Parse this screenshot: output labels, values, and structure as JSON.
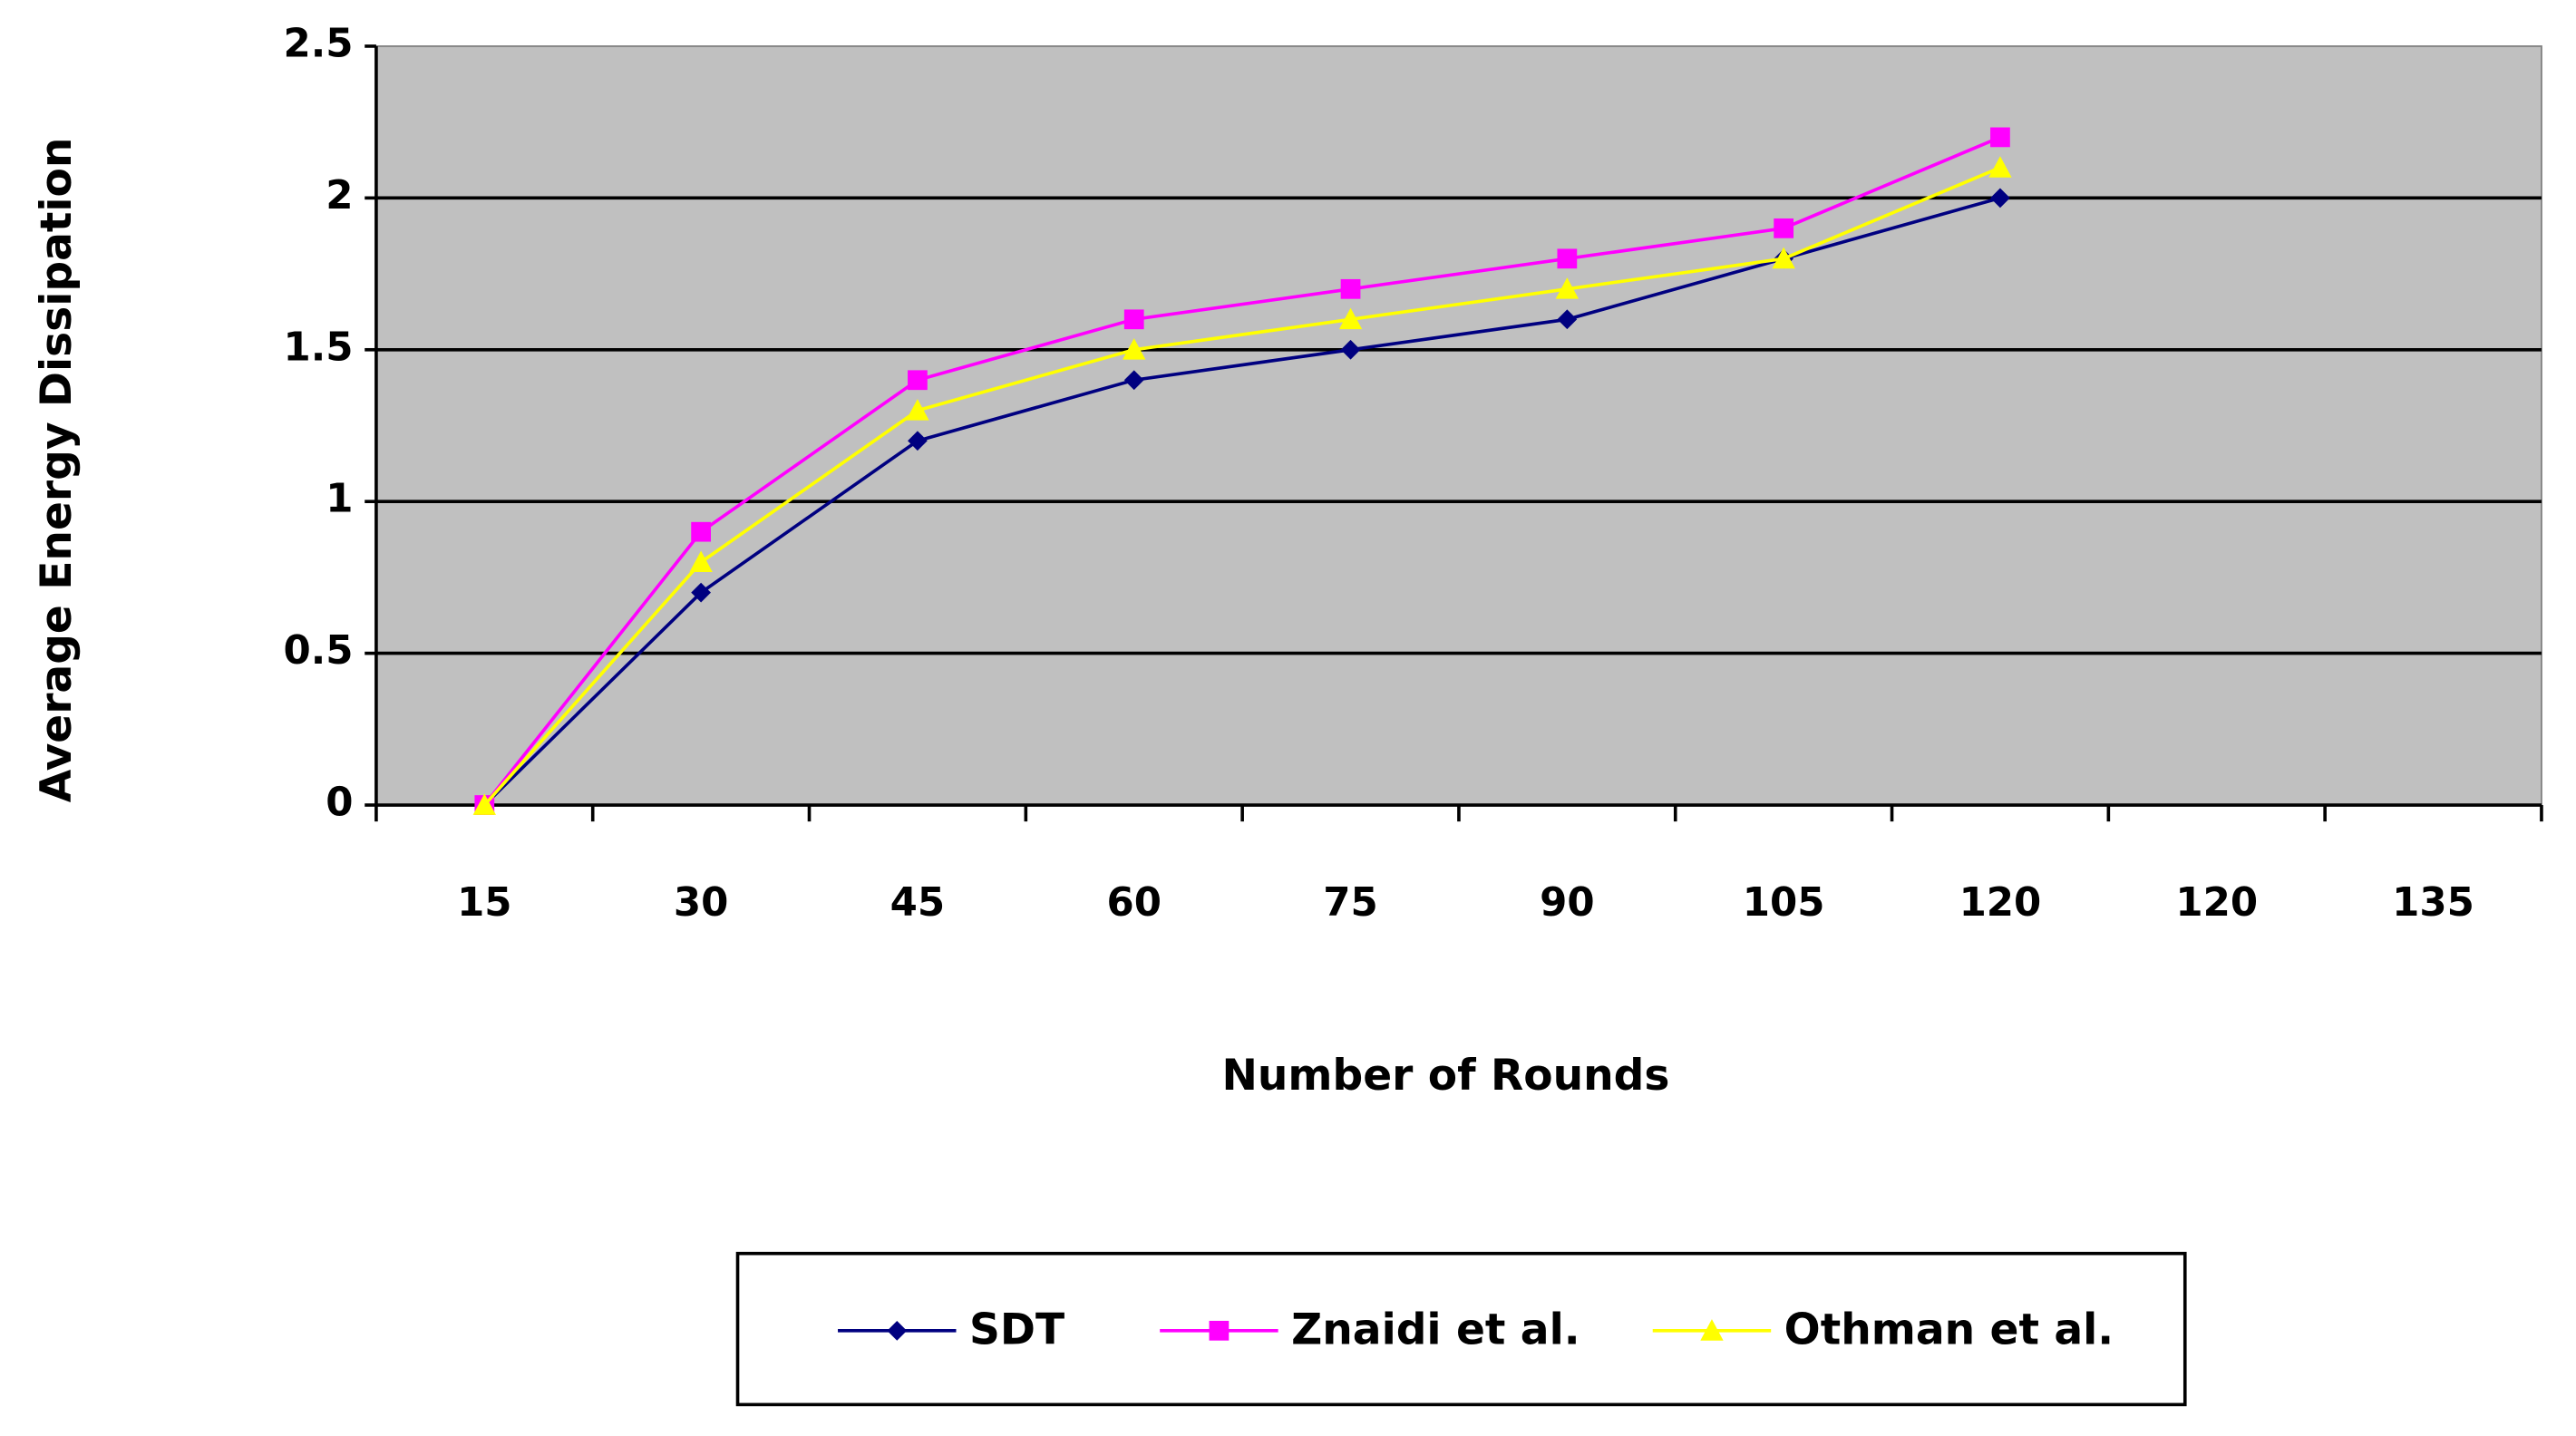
{
  "chart_data": {
    "type": "line",
    "xlabel": "Number of Rounds",
    "ylabel": "Average Energy Dissipation",
    "categories": [
      "15",
      "30",
      "45",
      "60",
      "75",
      "90",
      "105",
      "120",
      "120",
      "135"
    ],
    "series": [
      {
        "name": "SDT",
        "color": "#000080",
        "marker": "diamond",
        "values": [
          0,
          0.7,
          1.2,
          1.4,
          1.5,
          1.6,
          1.8,
          2.0,
          null,
          null
        ]
      },
      {
        "name": "Znaidi et al.",
        "color": "#ff00ff",
        "marker": "square",
        "values": [
          0,
          0.9,
          1.4,
          1.6,
          1.7,
          1.8,
          1.9,
          2.2,
          null,
          null
        ]
      },
      {
        "name": "Othman et al.",
        "color": "#ffff00",
        "marker": "triangle",
        "values": [
          0,
          0.8,
          1.3,
          1.5,
          1.6,
          1.7,
          1.8,
          2.1,
          null,
          null
        ]
      }
    ],
    "ylim": [
      0,
      2.5
    ],
    "yticks": [
      0,
      0.5,
      1,
      1.5,
      2,
      2.5
    ],
    "grid": true,
    "plot_background": "#c0c0c0",
    "legend": "bottom"
  }
}
